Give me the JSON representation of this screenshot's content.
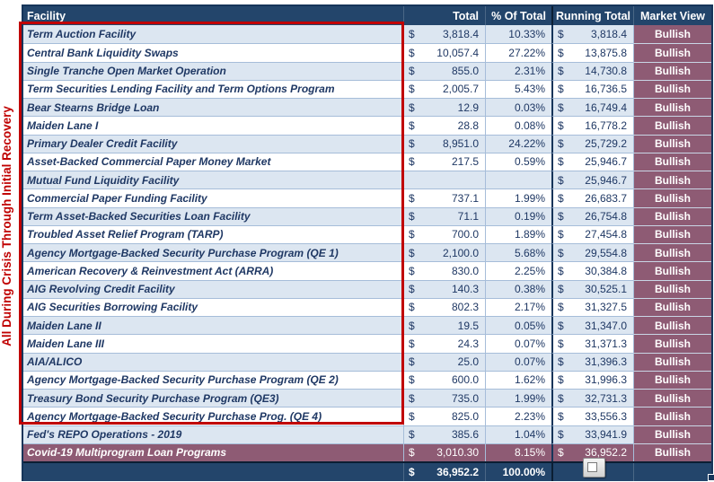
{
  "side_label": "All During Crisis Through Initial Recovery",
  "currency_symbol": "$",
  "columns": [
    "Facility",
    "Total",
    "% Of Total",
    "Running Total",
    "Market View"
  ],
  "rows": [
    {
      "facility": "Term Auction Facility",
      "total": "3,818.4",
      "pct": "10.33%",
      "running": "3,818.4",
      "view": "Bullish",
      "highlight": false
    },
    {
      "facility": "Central Bank Liquidity Swaps",
      "total": "10,057.4",
      "pct": "27.22%",
      "running": "13,875.8",
      "view": "Bullish",
      "highlight": false
    },
    {
      "facility": "Single Tranche Open Market Operation",
      "total": "855.0",
      "pct": "2.31%",
      "running": "14,730.8",
      "view": "Bullish",
      "highlight": false
    },
    {
      "facility": "Term Securities Lending Facility and Term Options Program",
      "total": "2,005.7",
      "pct": "5.43%",
      "running": "16,736.5",
      "view": "Bullish",
      "highlight": false
    },
    {
      "facility": "Bear Stearns Bridge Loan",
      "total": "12.9",
      "pct": "0.03%",
      "running": "16,749.4",
      "view": "Bullish",
      "highlight": false
    },
    {
      "facility": "Maiden Lane I",
      "total": "28.8",
      "pct": "0.08%",
      "running": "16,778.2",
      "view": "Bullish",
      "highlight": false
    },
    {
      "facility": "Primary Dealer Credit Facility",
      "total": "8,951.0",
      "pct": "24.22%",
      "running": "25,729.2",
      "view": "Bullish",
      "highlight": false
    },
    {
      "facility": "Asset-Backed Commercial Paper Money Market",
      "total": "217.5",
      "pct": "0.59%",
      "running": "25,946.7",
      "view": "Bullish",
      "highlight": false
    },
    {
      "facility": "Mutual Fund Liquidity Facility",
      "total": "",
      "pct": "",
      "running": "25,946.7",
      "view": "Bullish",
      "highlight": false
    },
    {
      "facility": "Commercial Paper Funding Facility",
      "total": "737.1",
      "pct": "1.99%",
      "running": "26,683.7",
      "view": "Bullish",
      "highlight": false
    },
    {
      "facility": "Term Asset-Backed Securities Loan Facility",
      "total": "71.1",
      "pct": "0.19%",
      "running": "26,754.8",
      "view": "Bullish",
      "highlight": false
    },
    {
      "facility": "Troubled Asset Relief Program (TARP)",
      "total": "700.0",
      "pct": "1.89%",
      "running": "27,454.8",
      "view": "Bullish",
      "highlight": false
    },
    {
      "facility": "Agency Mortgage-Backed Security Purchase Program (QE 1)",
      "total": "2,100.0",
      "pct": "5.68%",
      "running": "29,554.8",
      "view": "Bullish",
      "highlight": false
    },
    {
      "facility": "American Recovery & Reinvestment Act (ARRA)",
      "total": "830.0",
      "pct": "2.25%",
      "running": "30,384.8",
      "view": "Bullish",
      "highlight": false
    },
    {
      "facility": "AIG Revolving Credit Facility",
      "total": "140.3",
      "pct": "0.38%",
      "running": "30,525.1",
      "view": "Bullish",
      "highlight": false
    },
    {
      "facility": "AIG Securities Borrowing Facility",
      "total": "802.3",
      "pct": "2.17%",
      "running": "31,327.5",
      "view": "Bullish",
      "highlight": false
    },
    {
      "facility": "Maiden Lane II",
      "total": "19.5",
      "pct": "0.05%",
      "running": "31,347.0",
      "view": "Bullish",
      "highlight": false
    },
    {
      "facility": "Maiden Lane III",
      "total": "24.3",
      "pct": "0.07%",
      "running": "31,371.3",
      "view": "Bullish",
      "highlight": false
    },
    {
      "facility": "AIA/ALICO",
      "total": "25.0",
      "pct": "0.07%",
      "running": "31,396.3",
      "view": "Bullish",
      "highlight": false
    },
    {
      "facility": "Agency Mortgage-Backed Security Purchase Program (QE 2)",
      "total": "600.0",
      "pct": "1.62%",
      "running": "31,996.3",
      "view": "Bullish",
      "highlight": false
    },
    {
      "facility": "Treasury Bond Security Purchase Program (QE3)",
      "total": "735.0",
      "pct": "1.99%",
      "running": "32,731.3",
      "view": "Bullish",
      "highlight": false
    },
    {
      "facility": "Agency Mortgage-Backed Security Purchase Prog. (QE 4)",
      "total": "825.0",
      "pct": "2.23%",
      "running": "33,556.3",
      "view": "Bullish",
      "highlight": false
    },
    {
      "facility": "Fed's REPO Operations - 2019",
      "total": "385.6",
      "pct": "1.04%",
      "running": "33,941.9",
      "view": "Bullish",
      "highlight": false
    },
    {
      "facility": "Covid-19 Multiprogram Loan Programs",
      "total": "3,010.30",
      "pct": "8.15%",
      "running": "36,952.2",
      "view": "Bullish",
      "highlight": true
    }
  ],
  "footer": {
    "total": "36,952.2",
    "pct": "100.00%"
  },
  "annotations": {
    "red_box_rows": "Term Auction Facility through Agency Mortgage-Backed Security Purchase Prog. (QE 4)"
  },
  "icons": {
    "fx_button": "fx",
    "fill_handle": "selection-fill-handle"
  },
  "colors": {
    "header_bg": "#23456B",
    "row_alt_bg": "#DCE6F1",
    "row_bg": "#FFFFFF",
    "market_view_bg": "#8E5B74",
    "highlight_row_bg": "#8E5B74",
    "text_navy": "#1F3864",
    "annotation_red": "#C00000"
  }
}
